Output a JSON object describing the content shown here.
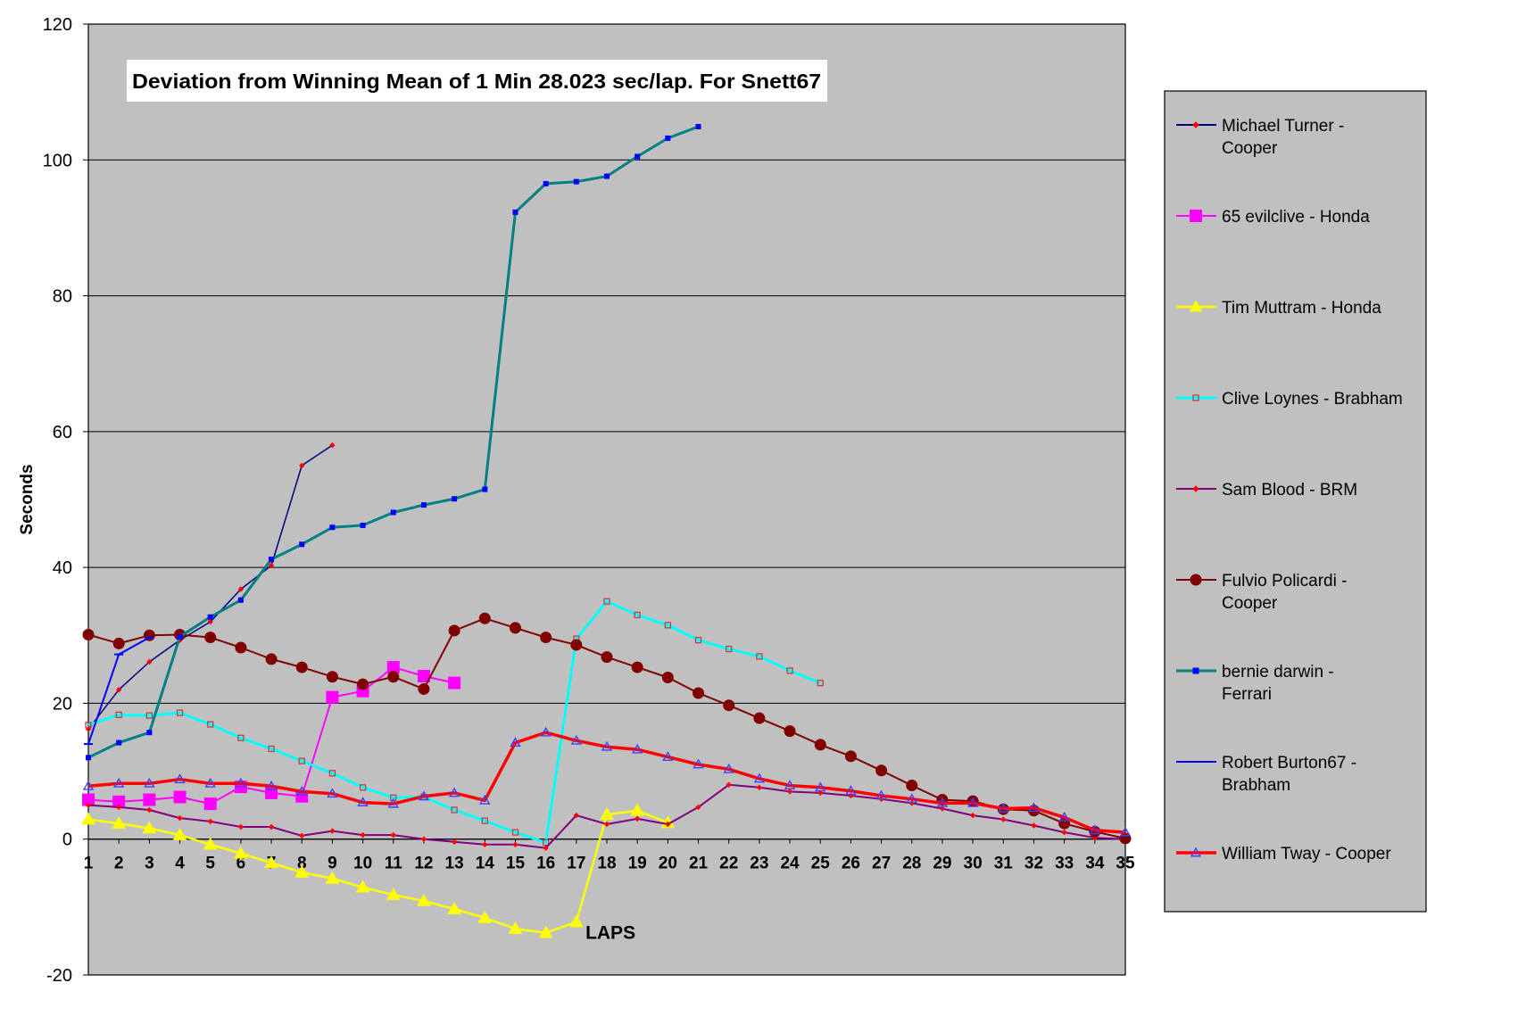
{
  "chart_data": {
    "type": "line",
    "title": "Deviation from Winning Mean of 1 Min 28.023 sec/lap. For Snett67",
    "xlabel": "LAPS",
    "ylabel": "Seconds",
    "xlim": [
      1,
      35
    ],
    "ylim": [
      -20,
      120
    ],
    "yticks": [
      -20,
      0,
      20,
      40,
      60,
      80,
      100,
      120
    ],
    "xticks": [
      1,
      2,
      3,
      4,
      5,
      6,
      7,
      8,
      9,
      10,
      11,
      12,
      13,
      14,
      15,
      16,
      17,
      18,
      19,
      20,
      21,
      22,
      23,
      24,
      25,
      26,
      27,
      28,
      29,
      30,
      31,
      32,
      33,
      34,
      35
    ],
    "grid": "horizontal",
    "legend_position": "right",
    "plot_background": "#c0c0c0",
    "series": [
      {
        "name": "Michael Turner - Cooper",
        "color": "#000080",
        "marker": "diamond",
        "marker_color": "#ff0000",
        "width": 1.5,
        "marker_size": 2.5,
        "x": [
          1,
          2,
          3,
          4,
          5,
          6,
          7,
          8,
          9
        ],
        "y": [
          16.2,
          22,
          26.1,
          29.3,
          32,
          36.8,
          40.3,
          55,
          58
        ]
      },
      {
        "name": "65 evilclive - Honda",
        "color": "#ff00ff",
        "marker": "square",
        "marker_color": "#ff00ff",
        "width": 2,
        "marker_size": 6.5,
        "x": [
          1,
          2,
          3,
          4,
          5,
          6,
          7,
          8,
          9,
          10,
          11,
          12,
          13
        ],
        "y": [
          5.8,
          5.5,
          5.8,
          6.2,
          5.2,
          7.7,
          6.8,
          6.3,
          20.9,
          21.8,
          25.3,
          24,
          23
        ]
      },
      {
        "name": "Tim Muttram - Honda",
        "color": "#ffff00",
        "marker": "triangle",
        "marker_color": "#ffff00",
        "width": 2.5,
        "marker_size": 7,
        "x": [
          1,
          2,
          3,
          4,
          5,
          6,
          7,
          8,
          9,
          10,
          11,
          12,
          13,
          14,
          15,
          16,
          17,
          18,
          19,
          20
        ],
        "y": [
          2.9,
          2.3,
          1.6,
          0.6,
          -0.8,
          -2.1,
          -3.5,
          -4.9,
          -5.8,
          -7.1,
          -8.2,
          -9.1,
          -10.3,
          -11.6,
          -13.2,
          -13.8,
          -12.2,
          3.6,
          4.2,
          2.4
        ]
      },
      {
        "name": "Clive Loynes - Brabham",
        "color": "#00ffff",
        "marker": "square-hollow",
        "marker_color": "#c04040",
        "width": 3,
        "marker_size": 3,
        "x": [
          1,
          2,
          3,
          4,
          5,
          6,
          7,
          8,
          9,
          10,
          11,
          12,
          13,
          14,
          15,
          16,
          17,
          18,
          19,
          20,
          21,
          22,
          23,
          24,
          25
        ],
        "y": [
          16.8,
          18.3,
          18.2,
          18.6,
          16.9,
          14.9,
          13.3,
          11.5,
          9.7,
          7.6,
          6.1,
          6.2,
          4.3,
          2.7,
          1,
          -0.5,
          29.5,
          35,
          33,
          31.5,
          29.3,
          28,
          26.9,
          24.8,
          23
        ]
      },
      {
        "name": "Sam Blood - BRM",
        "color": "#800080",
        "marker": "diamond",
        "marker_color": "#ff0000",
        "width": 2,
        "marker_size": 2.5,
        "x": [
          1,
          2,
          3,
          4,
          5,
          6,
          7,
          8,
          9,
          10,
          11,
          12,
          13,
          14,
          15,
          16,
          17,
          18,
          19,
          20,
          21,
          22,
          23,
          24,
          25,
          26,
          27,
          28,
          29,
          30,
          31,
          32,
          33,
          34,
          35
        ],
        "y": [
          5,
          4.7,
          4.3,
          3.1,
          2.6,
          1.8,
          1.8,
          0.5,
          1.2,
          0.6,
          0.6,
          0,
          -0.4,
          -0.8,
          -0.8,
          -1.3,
          3.5,
          2.2,
          3,
          2.2,
          4.7,
          8,
          7.6,
          7,
          6.8,
          6.4,
          5.9,
          5.3,
          4.5,
          3.5,
          2.9,
          2,
          1,
          0.2,
          0
        ]
      },
      {
        "name": "Fulvio Policardi - Cooper",
        "color": "#800000",
        "marker": "circle",
        "marker_color": "#800000",
        "width": 2,
        "marker_size": 6,
        "x": [
          1,
          2,
          3,
          4,
          5,
          6,
          7,
          8,
          9,
          10,
          11,
          12,
          13,
          14,
          15,
          16,
          17,
          18,
          19,
          20,
          21,
          22,
          23,
          24,
          25,
          26,
          27,
          28,
          29,
          30,
          31,
          32,
          33,
          34,
          35
        ],
        "y": [
          30.1,
          28.8,
          30,
          30.1,
          29.7,
          28.2,
          26.5,
          25.3,
          23.9,
          22.8,
          23.9,
          22.1,
          30.7,
          32.5,
          31.1,
          29.7,
          28.6,
          26.8,
          25.3,
          23.8,
          21.5,
          19.7,
          17.8,
          15.9,
          13.9,
          12.2,
          10.1,
          7.9,
          5.8,
          5.6,
          4.4,
          4.2,
          2.3,
          1.1,
          0.1
        ]
      },
      {
        "name": "bernie darwin - Ferrari",
        "color": "#008080",
        "marker": "square",
        "marker_color": "#0000ff",
        "width": 3,
        "marker_size": 2.5,
        "x": [
          1,
          2,
          3,
          4,
          5,
          6,
          7,
          8,
          9,
          10,
          11,
          12,
          13,
          14,
          15,
          16,
          17,
          18,
          19,
          20,
          21
        ],
        "y": [
          12,
          14.2,
          15.7,
          29.8,
          32.7,
          35.2,
          41.2,
          43.4,
          45.9,
          46.2,
          48.1,
          49.2,
          50.1,
          51.5,
          92.3,
          96.5,
          96.8,
          97.6,
          100.5,
          103.2,
          104.9
        ]
      },
      {
        "name": "Robert Burton67 - Brabham",
        "color": "#0000ff",
        "marker": "dash",
        "marker_color": "#0000ff",
        "width": 2,
        "marker_size": 5,
        "x": [
          1,
          2,
          3
        ],
        "y": [
          14,
          27.2,
          29.7
        ]
      },
      {
        "name": "William Tway - Cooper",
        "color": "#ff0000",
        "marker": "triangle-hollow",
        "marker_color": "#4040ff",
        "width": 3.5,
        "marker_size": 5,
        "x": [
          1,
          2,
          3,
          4,
          5,
          6,
          7,
          8,
          9,
          10,
          11,
          12,
          13,
          14,
          15,
          16,
          17,
          18,
          19,
          20,
          21,
          22,
          23,
          24,
          25,
          26,
          27,
          28,
          29,
          30,
          31,
          32,
          33,
          34,
          35
        ],
        "y": [
          7.8,
          8.2,
          8.2,
          8.8,
          8.2,
          8.2,
          7.8,
          7,
          6.7,
          5.4,
          5.2,
          6.3,
          6.8,
          5.7,
          14.2,
          15.7,
          14.5,
          13.6,
          13.2,
          12.1,
          11,
          10.3,
          8.9,
          7.9,
          7.6,
          7.1,
          6.4,
          5.9,
          5.3,
          5.3,
          4.5,
          4.6,
          3.2,
          1.3,
          1
        ]
      }
    ]
  }
}
